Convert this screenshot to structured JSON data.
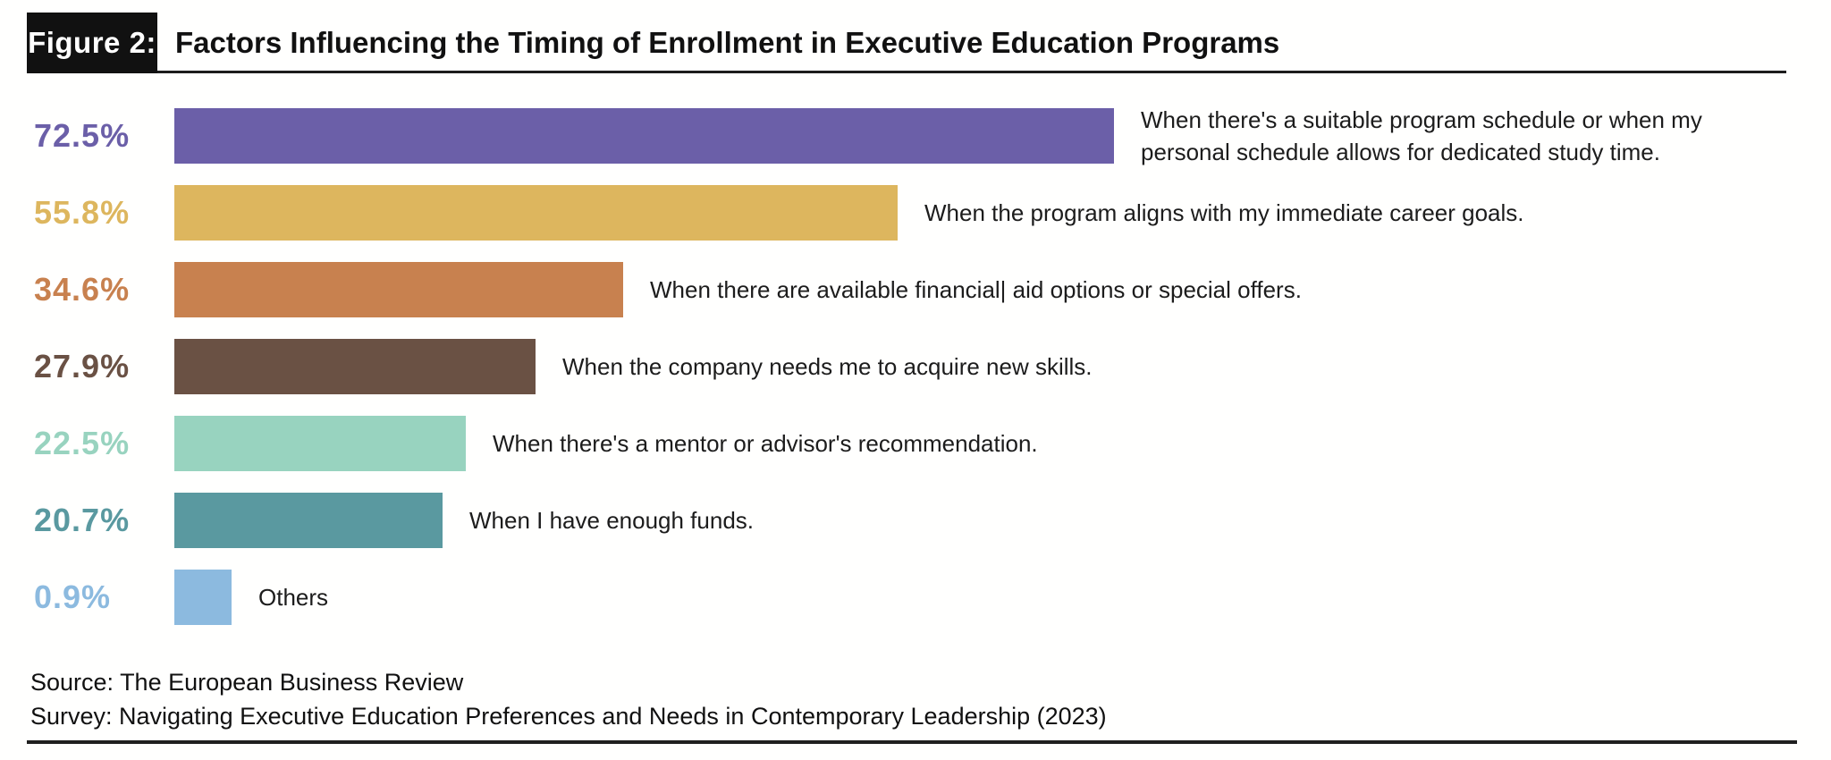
{
  "header": {
    "figure_label": "Figure 2:",
    "title": "Factors Influencing the Timing of Enrollment in Executive Education Programs"
  },
  "chart_data": {
    "type": "bar",
    "orientation": "horizontal",
    "title": "Factors Influencing the Timing of Enrollment in Executive Education Programs",
    "unit": "%",
    "xlim": [
      0,
      72.5
    ],
    "grid": false,
    "legend": "none",
    "categories": [
      "When there's a suitable program schedule or when my personal schedule allows for dedicated study time.",
      "When the program aligns with my immediate career goals.",
      "When there are available financial| aid options or special offers.",
      "When the company needs me to acquire new skills.",
      "When there's a mentor or advisor's recommendation.",
      "When I have enough funds.",
      "Others"
    ],
    "values": [
      72.5,
      55.8,
      34.6,
      27.9,
      22.5,
      20.7,
      0.9
    ],
    "value_labels": [
      "72.5%",
      "55.8%",
      "34.6%",
      "27.9%",
      "22.5%",
      "20.7%",
      "0.9%"
    ],
    "bar_colors": [
      "#6B5FA8",
      "#DDB65E",
      "#C8814F",
      "#6A5144",
      "#98D3BF",
      "#5A99A0",
      "#8CBADF"
    ],
    "label_lines": [
      [
        "When there's a suitable program schedule or when my",
        "personal schedule allows for dedicated study time."
      ],
      [
        "When the program aligns with my immediate career goals."
      ],
      [
        "When there are available financial| aid options or special offers."
      ],
      [
        "When the company needs me to acquire new skills."
      ],
      [
        "When there's a mentor or advisor's recommendation."
      ],
      [
        "When I have enough funds."
      ],
      [
        "Others"
      ]
    ]
  },
  "footer": {
    "source": "Source: The European Business Review",
    "survey": "Survey: Navigating Executive Education Preferences and Needs in Contemporary Leadership (2023)"
  }
}
